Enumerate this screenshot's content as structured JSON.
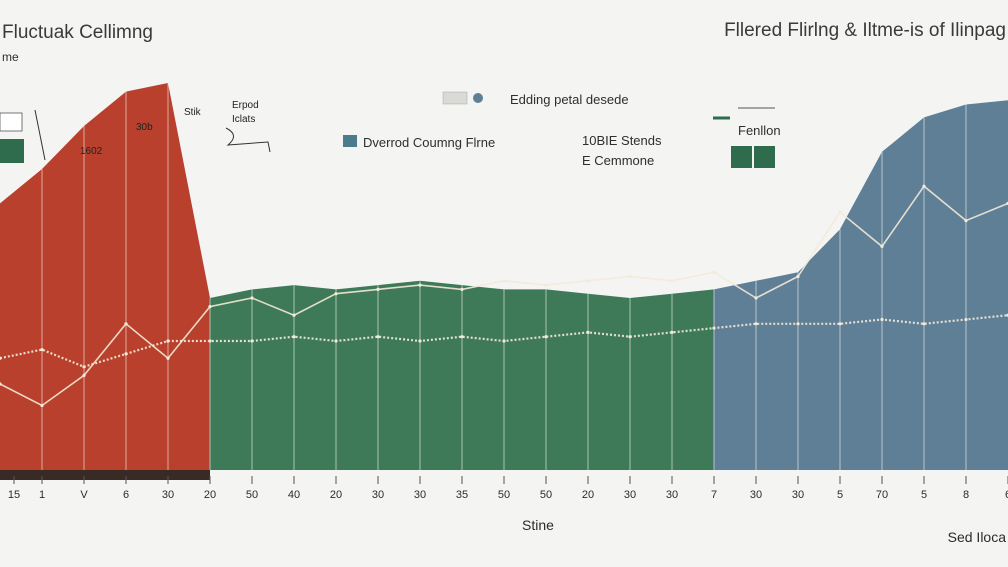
{
  "chart_data": {
    "type": "area",
    "title_left": "Fluctuak Cellimng",
    "title_left_sub": "me",
    "title_right": "Fllered Flirlng & Iltme-is of Ilinpag",
    "xlabel": "Stine",
    "xlabel_right": "Sed Iloca",
    "legend": [
      {
        "label": "Edding petal desede",
        "color": "#6f8fa8"
      },
      {
        "label": "Dverrod Coumng Flrne",
        "color": "#4b7c8c"
      },
      {
        "label": "10BIE Stends",
        "color": "#2f6b4d"
      },
      {
        "label": "E Cemmone",
        "color": "#2f6b4d"
      },
      {
        "label": "Fenllon",
        "color": "#2f6b4d"
      }
    ],
    "annotations": [
      "Erpod",
      "Iclats",
      "30b",
      "1602",
      "Stik"
    ],
    "regions": [
      {
        "name": "red",
        "color": "#b8402c",
        "x_from": 0,
        "x_to": 5
      },
      {
        "name": "green",
        "color": "#3f7a58",
        "x_from": 5,
        "x_to": 17
      },
      {
        "name": "blue",
        "color": "#5e7f95",
        "x_from": 17,
        "x_to": 24
      }
    ],
    "x": [
      0,
      1,
      2,
      3,
      4,
      5,
      6,
      7,
      8,
      9,
      10,
      11,
      12,
      13,
      14,
      15,
      16,
      17,
      18,
      19,
      20,
      21,
      22,
      23,
      24
    ],
    "top_edge": [
      62,
      70,
      80,
      88,
      90,
      40,
      42,
      43,
      42,
      43,
      44,
      43,
      42,
      42,
      41,
      40,
      41,
      42,
      44,
      46,
      56,
      74,
      82,
      85,
      86
    ],
    "series": [
      {
        "values": [
          20,
          15,
          22,
          34,
          26,
          38,
          40,
          36,
          41,
          42,
          43,
          42,
          44,
          43,
          44,
          45,
          44,
          46,
          40,
          45,
          60,
          52,
          66,
          58,
          62
        ]
      },
      {
        "values": [
          26,
          28,
          24,
          27,
          30,
          30,
          30,
          31,
          30,
          31,
          30,
          31,
          30,
          31,
          32,
          31,
          32,
          33,
          34,
          34,
          34,
          35,
          34,
          35,
          36
        ]
      }
    ],
    "x_tick_labels": [
      "15",
      "1",
      "V",
      "6",
      "30",
      "20",
      "50",
      "40",
      "20",
      "30",
      "30",
      "35",
      "50",
      "50",
      "20",
      "30",
      "30",
      "7",
      "30",
      "30",
      "5",
      "70",
      "5",
      "8",
      "6"
    ],
    "ylim": [
      0,
      100
    ]
  }
}
